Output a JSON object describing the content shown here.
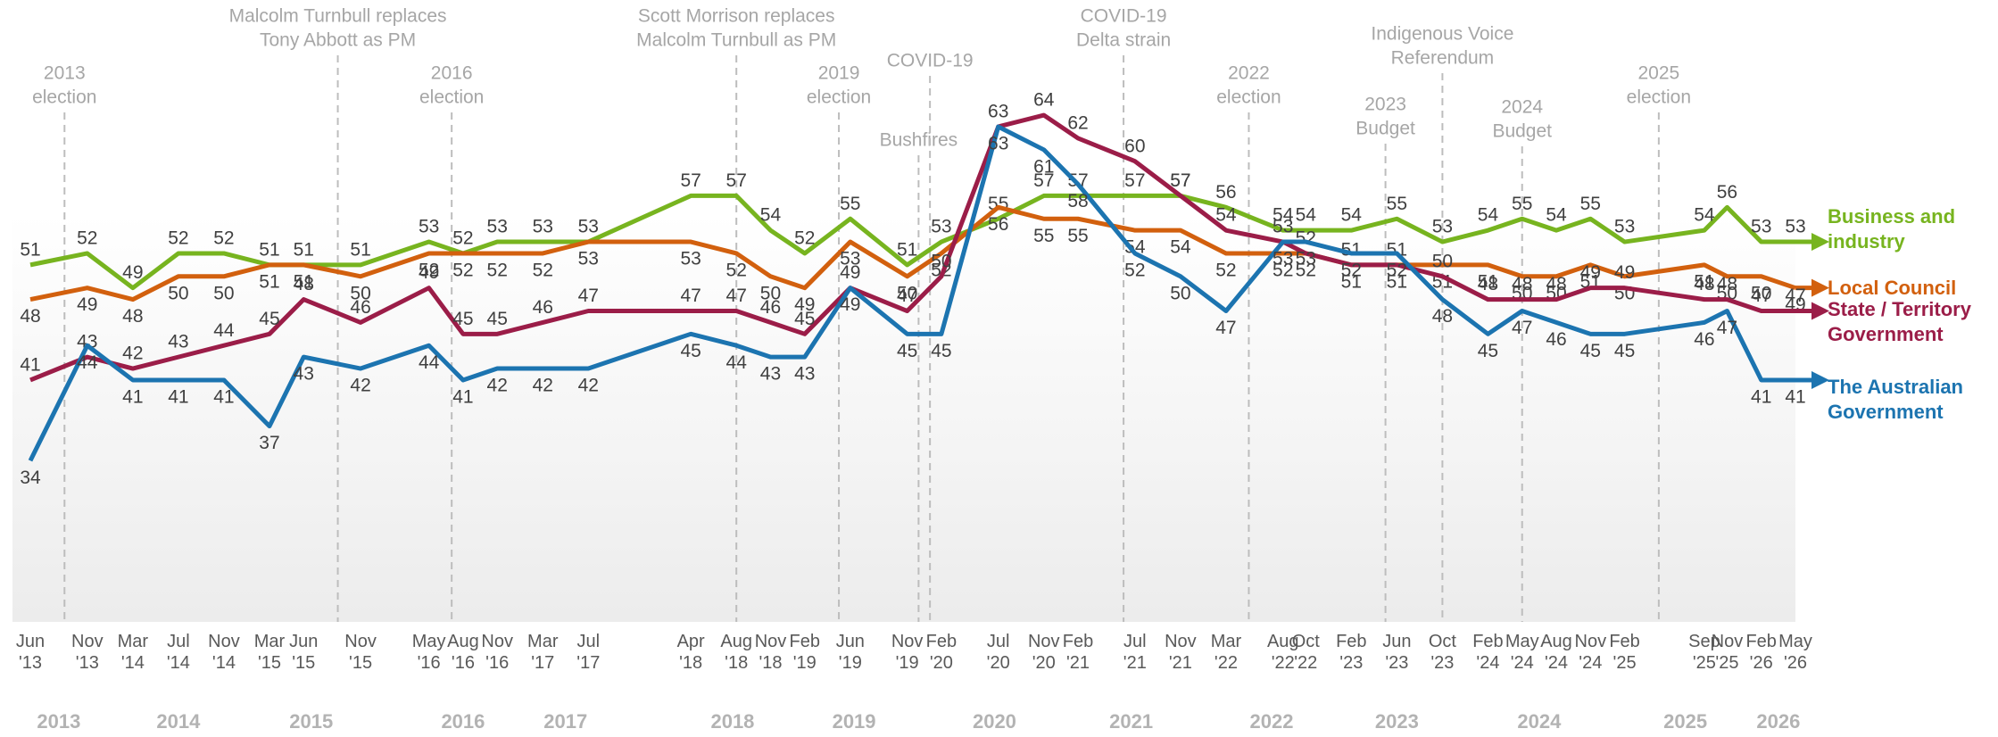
{
  "chart_data": {
    "type": "line",
    "xticks": [
      {
        "value": "2013-06",
        "label": "Jun '13"
      },
      {
        "value": "2013-11",
        "label": "Nov '13"
      },
      {
        "value": "2014-03",
        "label": "Mar '14"
      },
      {
        "value": "2014-07",
        "label": "Jul '14"
      },
      {
        "value": "2014-11",
        "label": "Nov '14"
      },
      {
        "value": "2015-03",
        "label": "Mar '15"
      },
      {
        "value": "2015-06",
        "label": "Jun '15"
      },
      {
        "value": "2015-11",
        "label": "Nov '15"
      },
      {
        "value": "2016-05",
        "label": "May '16"
      },
      {
        "value": "2016-08",
        "label": "Aug '16"
      },
      {
        "value": "2016-11",
        "label": "Nov '16"
      },
      {
        "value": "2017-03",
        "label": "Mar '17"
      },
      {
        "value": "2017-07",
        "label": "Jul '17"
      },
      {
        "value": "2018-04",
        "label": "Apr '18"
      },
      {
        "value": "2018-08",
        "label": "Aug '18"
      },
      {
        "value": "2018-11",
        "label": "Nov '18"
      },
      {
        "value": "2019-02",
        "label": "Feb '19"
      },
      {
        "value": "2019-06",
        "label": "Jun '19"
      },
      {
        "value": "2019-11",
        "label": "Nov '19"
      },
      {
        "value": "2020-02",
        "label": "Feb '20"
      },
      {
        "value": "2020-07",
        "label": "Jul '20"
      },
      {
        "value": "2020-11",
        "label": "Nov '20"
      },
      {
        "value": "2021-02",
        "label": "Feb '21"
      },
      {
        "value": "2021-07",
        "label": "Jul '21"
      },
      {
        "value": "2021-11",
        "label": "Nov '21"
      },
      {
        "value": "2022-03",
        "label": "Mar '22"
      },
      {
        "value": "2022-08",
        "label": "Aug '22"
      },
      {
        "value": "2022-10",
        "label": "Oct '22"
      },
      {
        "value": "2023-02",
        "label": "Feb '23"
      },
      {
        "value": "2023-06",
        "label": "Jun '23"
      },
      {
        "value": "2023-10",
        "label": "Oct '23"
      },
      {
        "value": "2024-02",
        "label": "Feb '24"
      },
      {
        "value": "2024-05",
        "label": "May '24"
      },
      {
        "value": "2024-08",
        "label": "Aug '24"
      },
      {
        "value": "2024-11",
        "label": "Nov '24"
      },
      {
        "value": "2025-02",
        "label": "Feb '25"
      },
      {
        "value": "2025-09",
        "label": "Sep '25"
      },
      {
        "value": "2025-11",
        "label": "Nov '25"
      },
      {
        "value": "2026-02",
        "label": "Feb '26"
      },
      {
        "value": "2026-05",
        "label": "May '26"
      }
    ],
    "x": [
      "2013-06",
      "2013-11",
      "2014-03",
      "2014-07",
      "2014-11",
      "2015-03",
      "2015-06",
      "2015-11",
      "2016-05",
      "2016-08",
      "2016-11",
      "2017-03",
      "2017-07",
      "2018-04",
      "2018-08",
      "2018-11",
      "2019-02",
      "2019-06",
      "2019-11",
      "2020-02",
      "2020-07",
      "2020-11",
      "2021-02",
      "2021-07",
      "2021-11",
      "2022-03",
      "2022-08",
      "2022-10",
      "2023-02",
      "2023-06",
      "2023-10",
      "2024-02",
      "2024-05",
      "2024-08",
      "2024-11",
      "2025-02",
      "2025-09",
      "2025-11",
      "2026-02",
      "2026-05"
    ],
    "xlim": [
      "2013-06",
      "2026-05"
    ],
    "ylim": [
      20,
      74
    ],
    "series": [
      {
        "name": "Business and industry",
        "color": "#77b41f",
        "values": [
          51,
          52,
          49,
          52,
          52,
          51,
          51,
          51,
          53,
          52,
          53,
          53,
          53,
          57,
          57,
          54,
          52,
          55,
          51,
          53,
          55,
          57,
          57,
          57,
          57,
          56,
          54,
          54,
          54,
          55,
          53,
          54,
          55,
          54,
          55,
          53,
          54,
          56,
          53,
          53
        ]
      },
      {
        "name": "Local Council",
        "color": "#d2600e",
        "values": [
          48,
          49,
          48,
          50,
          50,
          51,
          51,
          50,
          52,
          52,
          52,
          52,
          53,
          53,
          52,
          50,
          49,
          53,
          50,
          52,
          56,
          55,
          55,
          54,
          54,
          52,
          52,
          52,
          51,
          51,
          51,
          51,
          50,
          50,
          51,
          50,
          51,
          50,
          50,
          49
        ]
      },
      {
        "name": "State / Territory Government",
        "color": "#9b1d48",
        "values": [
          41,
          43,
          42,
          43,
          44,
          45,
          48,
          46,
          49,
          45,
          45,
          46,
          47,
          47,
          47,
          46,
          45,
          49,
          47,
          50,
          63,
          64,
          62,
          60,
          57,
          54,
          53,
          52,
          51,
          51,
          50,
          48,
          48,
          48,
          49,
          49,
          48,
          48,
          47,
          47
        ]
      },
      {
        "name": "The Australian Government",
        "color": "#1c74b0",
        "values": [
          34,
          44,
          41,
          41,
          41,
          37,
          43,
          42,
          44,
          41,
          42,
          42,
          42,
          45,
          44,
          43,
          43,
          49,
          45,
          45,
          63,
          61,
          58,
          52,
          50,
          47,
          53,
          53,
          52,
          52,
          48,
          45,
          47,
          46,
          45,
          45,
          46,
          47,
          41,
          41
        ]
      }
    ],
    "annotations": [
      {
        "x": "2013-09",
        "text": [
          "2013",
          "election"
        ]
      },
      {
        "x": "2015-09",
        "text": [
          "Malcolm Turnbull replaces",
          "Tony Abbott as PM"
        ]
      },
      {
        "x": "2016-07",
        "text": [
          "2016",
          "election"
        ]
      },
      {
        "x": "2018-08",
        "text": [
          "Scott Morrison replaces",
          "Malcolm Turnbull as PM"
        ]
      },
      {
        "x": "2019-05",
        "text": [
          "2019",
          "election"
        ]
      },
      {
        "x": "2019-12",
        "text": [
          "Bushfires"
        ]
      },
      {
        "x": "2020-01",
        "text": [
          "COVID-19"
        ]
      },
      {
        "x": "2021-06",
        "text": [
          "COVID-19",
          "Delta strain"
        ]
      },
      {
        "x": "2022-05",
        "text": [
          "2022",
          "election"
        ]
      },
      {
        "x": "2023-05",
        "text": [
          "2023",
          "Budget"
        ]
      },
      {
        "x": "2023-10",
        "text": [
          "Indigenous Voice",
          "Referendum"
        ]
      },
      {
        "x": "2024-05",
        "text": [
          "2024",
          "Budget"
        ]
      },
      {
        "x": "2025-05",
        "text": [
          "2025",
          "election"
        ]
      }
    ],
    "year_labels": [
      2013,
      2014,
      2015,
      2016,
      2017,
      2018,
      2019,
      2020,
      2021,
      2022,
      2023,
      2024,
      2025,
      2026
    ]
  }
}
